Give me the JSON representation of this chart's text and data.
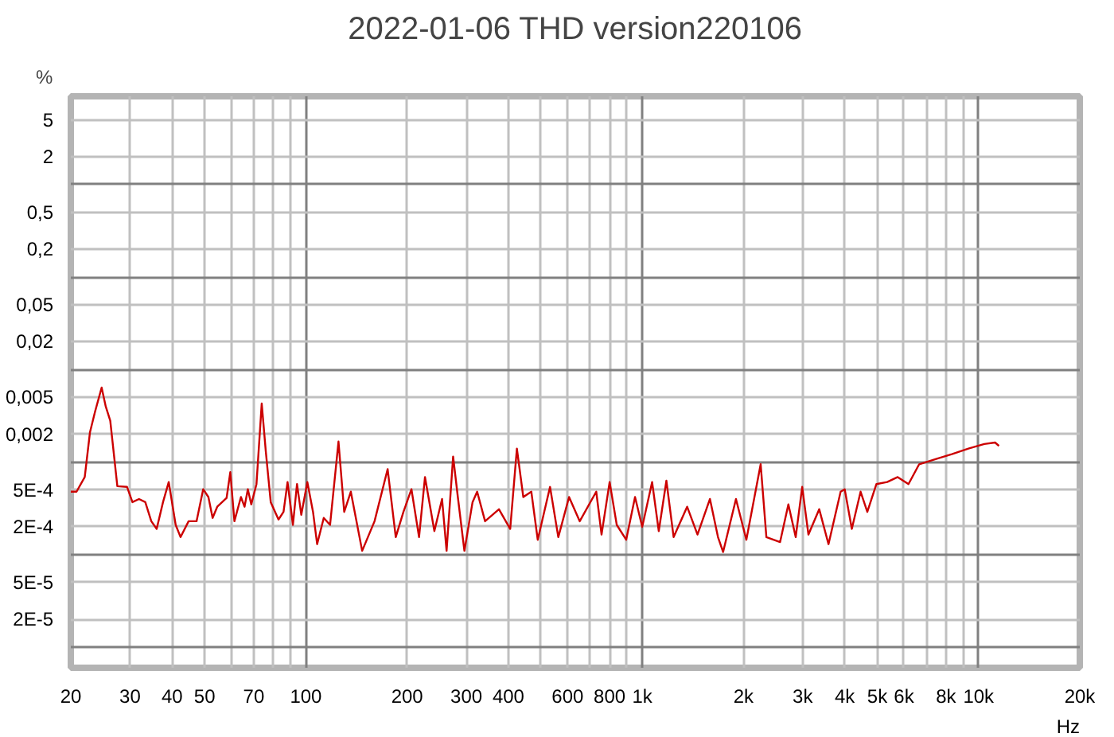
{
  "chart_data": {
    "type": "line",
    "title": "2022-01-06 THD version220106",
    "ylabel": "%",
    "log": "xy",
    "grid": true,
    "marker": "none",
    "line_style": "solid",
    "xlim": [
      20,
      20000
    ],
    "ylim": [
      6e-06,
      9
    ],
    "xticks": [
      20,
      30,
      40,
      50,
      {
        "value": 60,
        "label": null
      },
      70,
      {
        "value": 80,
        "label": null
      },
      {
        "value": 90,
        "label": null
      },
      100,
      200,
      300,
      400,
      {
        "value": 500,
        "label": null
      },
      600,
      {
        "value": 700,
        "label": null
      },
      800,
      {
        "value": 900,
        "label": null
      },
      {
        "value": 1000,
        "label": "1k"
      },
      {
        "value": 2000,
        "label": "2k"
      },
      {
        "value": 3000,
        "label": "3k"
      },
      {
        "value": 4000,
        "label": "4k"
      },
      {
        "value": 5000,
        "label": "5k"
      },
      {
        "value": 6000,
        "label": "6k"
      },
      {
        "value": 7000,
        "label": null
      },
      {
        "value": 8000,
        "label": "8k"
      },
      {
        "value": 9000,
        "label": null
      },
      {
        "value": 10000,
        "label": "10k"
      },
      {
        "value": 20000,
        "label": "20k"
      }
    ],
    "xlabel": "Hz",
    "yticks": [
      5,
      2,
      {
        "value": 1,
        "label": null
      },
      {
        "value": 0.5,
        "label": "0,5"
      },
      {
        "value": 0.2,
        "label": "0,2"
      },
      {
        "value": 0.1,
        "label": null
      },
      {
        "value": 0.05,
        "label": "0,05"
      },
      {
        "value": 0.02,
        "label": "0,02"
      },
      {
        "value": 0.01,
        "label": null
      },
      {
        "value": 0.005,
        "label": "0,005"
      },
      {
        "value": 0.002,
        "label": "0,002"
      },
      {
        "value": 0.001,
        "label": null
      },
      {
        "value": 0.0005,
        "label": "5E-4"
      },
      {
        "value": 0.0002,
        "label": "2E-4"
      },
      {
        "value": 0.0001,
        "label": null
      },
      {
        "value": 5e-05,
        "label": "5E-5"
      },
      {
        "value": 2e-05,
        "label": "2E-5"
      },
      {
        "value": 1e-05,
        "label": null
      }
    ],
    "series": [
      {
        "color": "#cc0000",
        "x": [
          20,
          20.8,
          22,
          22.8,
          23.6,
          24.7,
          25.4,
          26.2,
          27.5,
          29.4,
          30.5,
          31.9,
          33.3,
          34.7,
          36,
          37.6,
          39.1,
          41,
          42.4,
          44.8,
          47.3,
          49.5,
          51.3,
          52.8,
          54.5,
          58.1,
          59.6,
          61.3,
          64.1,
          65.7,
          67.2,
          68.8,
          71.3,
          73.9,
          76,
          78.6,
          82.9,
          85.8,
          88.2,
          91.5,
          94.1,
          96.9,
          101,
          105,
          108,
          113,
          118,
          125,
          130,
          136,
          147,
          160,
          175,
          185,
          195,
          206,
          217,
          226,
          241,
          254,
          262,
          274,
          283,
          296,
          313,
          323,
          341,
          375,
          405,
          424,
          443,
          468,
          489,
          532,
          563,
          606,
          652,
          730,
          757,
          800,
          840,
          896,
          952,
          1000,
          1070,
          1120,
          1180,
          1240,
          1360,
          1460,
          1590,
          1680,
          1740,
          1900,
          2040,
          2250,
          2340,
          2570,
          2720,
          2860,
          2990,
          3120,
          3360,
          3580,
          3890,
          4000,
          4200,
          4460,
          4670,
          4970,
          5350,
          5750,
          6190,
          6660,
          7450,
          8330,
          9330,
          10400,
          11200,
          11500
        ],
        "values": [
          0.00048,
          0.00048,
          0.00069,
          0.0021,
          0.0035,
          0.0064,
          0.004,
          0.0028,
          0.00055,
          0.00054,
          0.00037,
          0.0004,
          0.00037,
          0.00023,
          0.00019,
          0.00037,
          0.00061,
          0.00021,
          0.000155,
          0.00023,
          0.00023,
          0.00051,
          0.00042,
          0.00025,
          0.00033,
          0.00041,
          0.00078,
          0.00023,
          0.00042,
          0.00033,
          0.00051,
          0.00035,
          0.00058,
          0.0043,
          0.0013,
          0.00037,
          0.00024,
          0.00029,
          0.00061,
          0.00021,
          0.00058,
          0.00027,
          0.00061,
          0.00029,
          0.00013,
          0.00025,
          0.00021,
          0.00167,
          0.00029,
          0.00048,
          0.00011,
          0.00023,
          0.00084,
          0.000155,
          0.00029,
          0.00051,
          0.000155,
          0.00069,
          0.00018,
          0.0004,
          0.00011,
          0.00115,
          0.00042,
          0.00011,
          0.00037,
          0.00048,
          0.00023,
          0.00031,
          0.00019,
          0.0014,
          0.00042,
          0.00048,
          0.000145,
          0.00054,
          0.000155,
          0.00042,
          0.00023,
          0.00048,
          0.000165,
          0.00061,
          0.00021,
          0.000145,
          0.00042,
          0.0002,
          0.00061,
          0.00018,
          0.00063,
          0.000155,
          0.00033,
          0.000165,
          0.0004,
          0.000155,
          0.000107,
          0.0004,
          0.000145,
          0.00095,
          0.000155,
          0.000137,
          0.00035,
          0.000155,
          0.00054,
          0.000165,
          0.00031,
          0.00013,
          0.00048,
          0.00051,
          0.00019,
          0.00048,
          0.00029,
          0.00058,
          0.00061,
          0.00069,
          0.00058,
          0.00095,
          0.00108,
          0.00122,
          0.0014,
          0.00157,
          0.00163,
          0.0015
        ]
      }
    ]
  }
}
